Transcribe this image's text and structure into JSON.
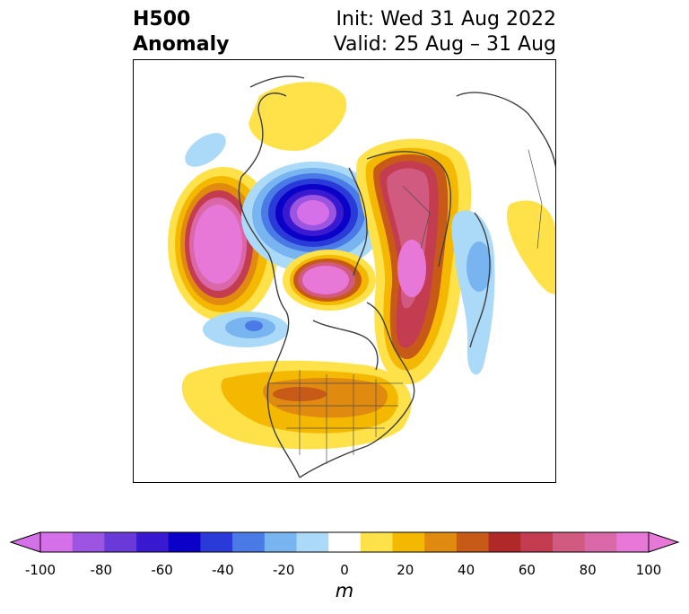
{
  "title": {
    "left_line1": "H500",
    "left_line2": "Anomaly",
    "right_line1": "Init: Wed 31 Aug 2022",
    "right_line2": "Valid: 25 Aug – 31 Aug"
  },
  "colorbar": {
    "unit_label": "m",
    "ticks": [
      "-100",
      "-80",
      "-60",
      "-40",
      "-20",
      "0",
      "20",
      "40",
      "60",
      "80",
      "100"
    ],
    "levels": [
      -100,
      -90,
      -80,
      -70,
      -60,
      -50,
      -40,
      -30,
      -20,
      -10,
      10,
      20,
      30,
      40,
      50,
      60,
      70,
      80,
      90,
      100
    ],
    "colors": [
      "#d670e8",
      "#9b55e0",
      "#6a3ad8",
      "#3a1ad0",
      "#0a00c8",
      "#2a3ad8",
      "#4a7ae6",
      "#78b4f0",
      "#aadaf8",
      "#ffffff",
      "#ffe14a",
      "#f5b800",
      "#e08a10",
      "#c85a18",
      "#b02828",
      "#c43c50",
      "#d05a80",
      "#da68a8",
      "#e878d8"
    ],
    "extend_min_color": "#d670e8",
    "extend_max_color": "#e878d8"
  }
}
